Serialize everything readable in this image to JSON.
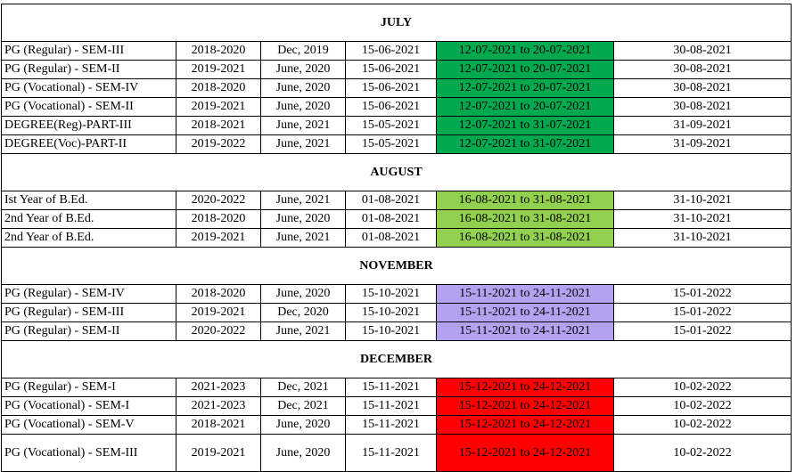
{
  "colors": {
    "july_period": "#00a84e",
    "august_period": "#92d050",
    "november_period": "#b4a1f0",
    "december_period": "#ff0000"
  },
  "sections": [
    {
      "month": "JULY",
      "rows": [
        [
          "PG (Regular) - SEM-III",
          "2018-2020",
          "Dec, 2019",
          "15-06-2021",
          "12-07-2021 to 20-07-2021",
          "30-08-2021"
        ],
        [
          "PG (Regular) - SEM-II",
          "2019-2021",
          "June, 2020",
          "15-06-2021",
          "12-07-2021 to 20-07-2021",
          "30-08-2021"
        ],
        [
          "PG (Vocational) - SEM-IV",
          "2018-2020",
          "June, 2020",
          "15-06-2021",
          "12-07-2021 to 20-07-2021",
          "30-08-2021"
        ],
        [
          "PG (Vocational) - SEM-II",
          "2019-2021",
          "June, 2020",
          "15-06-2021",
          "12-07-2021 to 20-07-2021",
          "30-08-2021"
        ],
        [
          "DEGREE(Reg)-PART-III",
          "2018-2021",
          "June, 2021",
          "15-05-2021",
          "12-07-2021 to 31-07-2021",
          "31-09-2021"
        ],
        [
          "DEGREE(Voc)-PART-II",
          "2019-2022",
          "June, 2021",
          "15-05-2021",
          "12-07-2021 to 31-07-2021",
          "31-09-2021"
        ]
      ]
    },
    {
      "month": "AUGUST",
      "rows": [
        [
          "Ist Year of B.Ed.",
          "2020-2022",
          "June, 2021",
          "01-08-2021",
          "16-08-2021 to 31-08-2021",
          "31-10-2021"
        ],
        [
          "2nd Year of B.Ed.",
          "2018-2020",
          "June, 2020",
          "01-08-2021",
          "16-08-2021 to 31-08-2021",
          "31-10-2021"
        ],
        [
          "2nd Year of B.Ed.",
          "2019-2021",
          "June, 2021",
          "01-08-2021",
          "16-08-2021 to 31-08-2021",
          "31-10-2021"
        ]
      ]
    },
    {
      "month": "NOVEMBER",
      "rows": [
        [
          "PG (Regular) - SEM-IV",
          "2018-2020",
          "June, 2020",
          "15-10-2021",
          "15-11-2021 to 24-11-2021",
          "15-01-2022"
        ],
        [
          "PG (Regular) - SEM-III",
          "2019-2021",
          "Dec, 2020",
          "15-10-2021",
          "15-11-2021 to 24-11-2021",
          "15-01-2022"
        ],
        [
          "PG (Regular) - SEM-II",
          "2020-2022",
          "June, 2021",
          "15-10-2021",
          "15-11-2021 to 24-11-2021",
          "15-01-2022"
        ]
      ]
    },
    {
      "month": "DECEMBER",
      "rows": [
        [
          "PG (Regular) - SEM-I",
          "2021-2023",
          "Dec, 2021",
          "15-11-2021",
          "15-12-2021 to 24-12-2021",
          "10-02-2022"
        ],
        [
          "PG (Vocational) - SEM-I",
          "2021-2023",
          "Dec, 2021",
          "15-11-2021",
          "15-12-2021 to 24-12-2021",
          "10-02-2022"
        ],
        [
          "PG (Vocational) - SEM-V",
          "2018-2021",
          "June, 2020",
          "15-11-2021",
          "15-12-2021 to 24-12-2021",
          "10-02-2022"
        ],
        [
          "PG (Vocational) - SEM-III",
          "2019-2021",
          "June, 2020",
          "15-11-2021",
          "15-12-2021 to 24-12-2021",
          "10-02-2022"
        ]
      ]
    }
  ]
}
